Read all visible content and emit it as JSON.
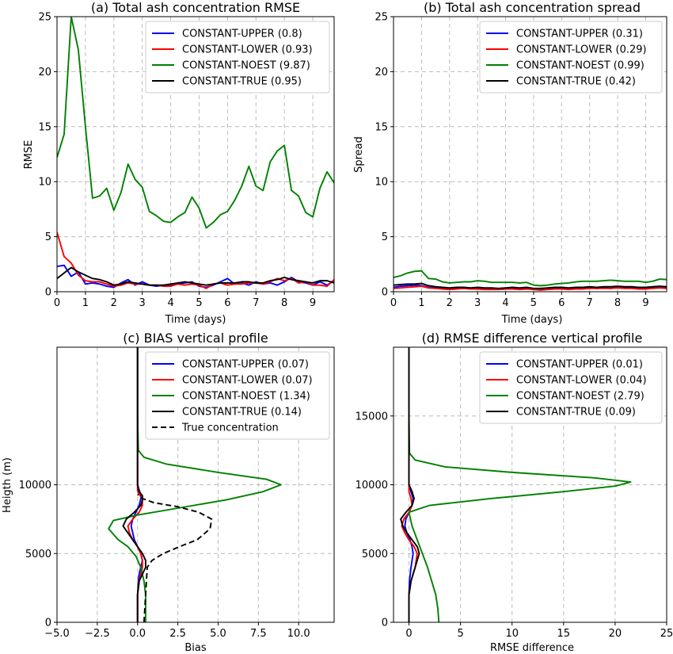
{
  "chart_data": [
    {
      "type": "line",
      "title": "(a) Total ash concentration RMSE",
      "xlabel": "Time (days)",
      "ylabel": "RMSE",
      "xlim": [
        0,
        9.75
      ],
      "ylim": [
        0,
        25
      ],
      "xticks": [
        0,
        1,
        2,
        3,
        4,
        5,
        6,
        7,
        8,
        9
      ],
      "yticks": [
        0,
        5,
        10,
        15,
        20,
        25
      ],
      "xtick_labels": [
        "0",
        "1",
        "2",
        "3",
        "4",
        "5",
        "6",
        "7",
        "8",
        "9"
      ],
      "ytick_labels": [
        "0",
        "5",
        "10",
        "15",
        "20",
        "25"
      ],
      "grid": true,
      "legend": "upper right",
      "x": [
        0,
        0.25,
        0.5,
        0.75,
        1,
        1.25,
        1.5,
        1.75,
        2,
        2.25,
        2.5,
        2.75,
        3,
        3.25,
        3.5,
        3.75,
        4,
        4.25,
        4.5,
        4.75,
        5,
        5.25,
        5.5,
        5.75,
        6,
        6.25,
        6.5,
        6.75,
        7,
        7.25,
        7.5,
        7.75,
        8,
        8.25,
        8.5,
        8.75,
        9,
        9.25,
        9.5,
        9.75
      ],
      "series": [
        {
          "name": "CONSTANT-UPPER (0.8)",
          "color": "#0000ff",
          "values": [
            2.3,
            2.4,
            1.4,
            1.8,
            0.7,
            0.8,
            0.7,
            0.5,
            0.4,
            0.8,
            1.1,
            0.6,
            0.9,
            0.6,
            0.5,
            0.6,
            0.6,
            0.7,
            0.8,
            0.9,
            0.5,
            0.4,
            0.6,
            0.9,
            1.2,
            0.7,
            0.8,
            0.6,
            0.9,
            0.7,
            0.8,
            0.6,
            0.9,
            1.3,
            0.9,
            0.8,
            0.6,
            0.9,
            0.6,
            1.0
          ]
        },
        {
          "name": "CONSTANT-LOWER (0.93)",
          "color": "#ff0000",
          "values": [
            5.4,
            3.2,
            2.6,
            1.5,
            1.0,
            0.9,
            0.9,
            0.7,
            0.5,
            0.6,
            0.8,
            0.7,
            0.7,
            0.6,
            0.6,
            0.5,
            0.5,
            0.7,
            0.6,
            0.7,
            0.6,
            0.3,
            0.7,
            0.8,
            0.6,
            0.7,
            0.7,
            0.8,
            0.8,
            0.7,
            0.9,
            1.2,
            1.0,
            1.2,
            0.8,
            0.9,
            0.6,
            0.6,
            0.5,
            1.1
          ]
        },
        {
          "name": "CONSTANT-NOEST (9.87)",
          "color": "#008000",
          "values": [
            12.2,
            14.3,
            25.0,
            22.0,
            15.0,
            8.5,
            8.7,
            9.4,
            7.4,
            9.0,
            11.6,
            10.2,
            9.5,
            7.3,
            6.9,
            6.4,
            6.3,
            6.8,
            7.2,
            8.6,
            7.6,
            5.8,
            6.3,
            7.0,
            7.3,
            8.3,
            9.6,
            11.4,
            9.6,
            9.2,
            11.8,
            12.8,
            13.3,
            9.2,
            8.7,
            7.2,
            6.8,
            9.4,
            10.9,
            9.9
          ]
        },
        {
          "name": "CONSTANT-TRUE (0.95)",
          "color": "#000000",
          "values": [
            1.2,
            1.7,
            2.2,
            1.8,
            1.5,
            1.2,
            1.1,
            0.9,
            0.6,
            0.7,
            0.9,
            0.8,
            0.7,
            0.6,
            0.6,
            0.6,
            0.7,
            0.8,
            0.9,
            0.8,
            0.7,
            0.6,
            0.7,
            0.8,
            0.8,
            0.8,
            0.9,
            0.9,
            0.8,
            0.8,
            1.0,
            1.1,
            1.3,
            1.1,
            1.0,
            0.9,
            0.8,
            1.0,
            1.0,
            0.8
          ]
        }
      ]
    },
    {
      "type": "line",
      "title": "(b) Total ash concentration spread",
      "xlabel": "Time (days)",
      "ylabel": "Spread",
      "xlim": [
        0,
        9.75
      ],
      "ylim": [
        0,
        25
      ],
      "xticks": [
        0,
        1,
        2,
        3,
        4,
        5,
        6,
        7,
        8,
        9
      ],
      "yticks": [
        0,
        5,
        10,
        15,
        20,
        25
      ],
      "xtick_labels": [
        "0",
        "1",
        "2",
        "3",
        "4",
        "5",
        "6",
        "7",
        "8",
        "9"
      ],
      "ytick_labels": [
        "0",
        "5",
        "10",
        "15",
        "20",
        "25"
      ],
      "grid": true,
      "legend": "upper right",
      "x": [
        0,
        0.25,
        0.5,
        0.75,
        1,
        1.25,
        1.5,
        1.75,
        2,
        2.25,
        2.5,
        2.75,
        3,
        3.25,
        3.5,
        3.75,
        4,
        4.25,
        4.5,
        4.75,
        5,
        5.25,
        5.5,
        5.75,
        6,
        6.25,
        6.5,
        6.75,
        7,
        7.25,
        7.5,
        7.75,
        8,
        8.25,
        8.5,
        8.75,
        9,
        9.25,
        9.5,
        9.75
      ],
      "series": [
        {
          "name": "CONSTANT-UPPER (0.31)",
          "color": "#0000ff",
          "values": [
            0.4,
            0.5,
            0.55,
            0.6,
            0.55,
            0.4,
            0.35,
            0.3,
            0.25,
            0.3,
            0.3,
            0.25,
            0.3,
            0.25,
            0.25,
            0.2,
            0.25,
            0.3,
            0.25,
            0.3,
            0.2,
            0.2,
            0.25,
            0.3,
            0.3,
            0.25,
            0.3,
            0.3,
            0.35,
            0.3,
            0.35,
            0.3,
            0.4,
            0.35,
            0.35,
            0.3,
            0.3,
            0.35,
            0.4,
            0.35
          ]
        },
        {
          "name": "CONSTANT-LOWER (0.29)",
          "color": "#ff0000",
          "values": [
            0.3,
            0.35,
            0.4,
            0.45,
            0.5,
            0.35,
            0.3,
            0.25,
            0.2,
            0.25,
            0.3,
            0.25,
            0.25,
            0.2,
            0.2,
            0.2,
            0.25,
            0.25,
            0.2,
            0.25,
            0.2,
            0.15,
            0.2,
            0.25,
            0.25,
            0.2,
            0.25,
            0.25,
            0.3,
            0.3,
            0.3,
            0.3,
            0.35,
            0.3,
            0.3,
            0.25,
            0.25,
            0.3,
            0.35,
            0.3
          ]
        },
        {
          "name": "CONSTANT-NOEST (0.99)",
          "color": "#008000",
          "values": [
            1.3,
            1.45,
            1.7,
            1.85,
            1.9,
            1.2,
            1.15,
            0.9,
            0.8,
            0.85,
            0.9,
            0.9,
            1.0,
            0.95,
            0.85,
            0.85,
            0.85,
            0.85,
            0.8,
            0.85,
            0.6,
            0.55,
            0.6,
            0.7,
            0.75,
            0.8,
            0.9,
            0.95,
            0.95,
            0.95,
            1.0,
            1.05,
            1.0,
            0.95,
            0.95,
            0.95,
            0.85,
            0.95,
            1.15,
            1.1
          ]
        },
        {
          "name": "CONSTANT-TRUE (0.42)",
          "color": "#000000",
          "values": [
            0.6,
            0.65,
            0.7,
            0.7,
            0.75,
            0.55,
            0.45,
            0.4,
            0.35,
            0.4,
            0.4,
            0.35,
            0.4,
            0.35,
            0.35,
            0.3,
            0.35,
            0.4,
            0.35,
            0.4,
            0.3,
            0.3,
            0.35,
            0.4,
            0.4,
            0.35,
            0.4,
            0.4,
            0.45,
            0.4,
            0.45,
            0.45,
            0.5,
            0.45,
            0.45,
            0.4,
            0.4,
            0.45,
            0.5,
            0.45
          ]
        }
      ]
    },
    {
      "type": "line",
      "title": "(c) BIAS vertical profile",
      "xlabel": "Bias",
      "ylabel": "Heigth (m)",
      "xlim": [
        -5,
        12.2
      ],
      "ylim": [
        0,
        20000
      ],
      "xticks": [
        -5,
        -2.5,
        0,
        2.5,
        5,
        7.5,
        10
      ],
      "yticks": [
        0,
        5000,
        10000
      ],
      "xtick_labels": [
        "−5.0",
        "−2.5",
        "0.0",
        "2.5",
        "5.0",
        "7.5",
        "10.0"
      ],
      "ytick_labels": [
        "0",
        "5000",
        "10000"
      ],
      "grid": true,
      "legend": "upper right",
      "series": [
        {
          "name": "CONSTANT-UPPER (0.07)",
          "color": "#0000ff",
          "dash": false,
          "x": [
            0.0,
            0.0,
            0.0,
            0.05,
            0.1,
            0.2,
            0.3,
            0.2,
            0.0,
            -0.2,
            -0.3,
            -0.4,
            -0.3,
            -0.1,
            0.1,
            0.2,
            0.2,
            0.1,
            0.0,
            0.0,
            0.0,
            0.0
          ],
          "y": [
            0,
            1000,
            2000,
            3000,
            3500,
            4000,
            4500,
            5000,
            5500,
            6000,
            6500,
            7000,
            7500,
            8000,
            8500,
            9000,
            9300,
            9600,
            10000,
            12000,
            16000,
            20000
          ]
        },
        {
          "name": "CONSTANT-LOWER (0.07)",
          "color": "#ff0000",
          "dash": false,
          "x": [
            0.0,
            0.0,
            0.0,
            0.1,
            0.2,
            0.3,
            0.3,
            0.2,
            0.0,
            -0.3,
            -0.5,
            -0.6,
            -0.3,
            0.1,
            0.3,
            0.3,
            0.1,
            0.0,
            0.0,
            0.0,
            0.0,
            0.0
          ],
          "y": [
            0,
            1000,
            2000,
            3000,
            3500,
            4000,
            4500,
            5000,
            5500,
            6000,
            6500,
            7000,
            7500,
            8000,
            8500,
            9000,
            9300,
            9600,
            10000,
            12000,
            16000,
            20000
          ]
        },
        {
          "name": "CONSTANT-NOEST (1.34)",
          "color": "#008000",
          "dash": false,
          "x": [
            0.5,
            0.5,
            0.5,
            0.4,
            0.2,
            -0.1,
            -0.6,
            -1.2,
            -1.8,
            -1.5,
            0.0,
            2.5,
            5.5,
            7.8,
            8.9,
            8.0,
            5.0,
            1.8,
            0.4,
            0.05,
            0.0,
            0.0
          ],
          "y": [
            0,
            1000,
            2000,
            3000,
            4000,
            4800,
            5500,
            6000,
            6800,
            7400,
            7800,
            8300,
            8900,
            9500,
            10000,
            10400,
            10900,
            11500,
            12000,
            12500,
            15000,
            20000
          ]
        },
        {
          "name": "CONSTANT-TRUE (0.14)",
          "color": "#000000",
          "dash": false,
          "x": [
            0.0,
            0.0,
            0.0,
            0.1,
            0.3,
            0.5,
            0.5,
            0.3,
            0.0,
            -0.3,
            -0.6,
            -0.9,
            -0.7,
            -0.2,
            0.2,
            0.3,
            0.3,
            0.1,
            0.0,
            0.0,
            0.0,
            0.0
          ],
          "y": [
            0,
            1000,
            2000,
            3000,
            3500,
            4000,
            4500,
            5000,
            5500,
            6000,
            6500,
            7000,
            7500,
            8000,
            8500,
            8900,
            9200,
            9500,
            10000,
            12000,
            16000,
            20000
          ]
        },
        {
          "name": "True concentration",
          "color": "#000000",
          "dash": true,
          "x": [
            0.4,
            0.45,
            0.5,
            0.55,
            0.6,
            0.9,
            1.6,
            2.6,
            3.7,
            4.5,
            4.6,
            3.8,
            2.5,
            1.0,
            0.3,
            0.0
          ],
          "y": [
            0,
            1000,
            2000,
            3000,
            4000,
            4500,
            5000,
            5500,
            6000,
            6800,
            7500,
            8000,
            8400,
            8700,
            9000,
            9300
          ]
        }
      ]
    },
    {
      "type": "line",
      "title": "(d) RMSE difference vertical profile",
      "xlabel": "RMSE difference",
      "ylabel": "",
      "xlim": [
        -1.5,
        25
      ],
      "ylim": [
        0,
        20000
      ],
      "xticks": [
        0,
        5,
        10,
        15,
        20,
        25
      ],
      "yticks": [
        0,
        5000,
        10000,
        15000
      ],
      "xtick_labels": [
        "0",
        "5",
        "10",
        "15",
        "20",
        "25"
      ],
      "ytick_labels": [
        "0",
        "5000",
        "10000",
        "15000"
      ],
      "grid": true,
      "legend": "upper right",
      "series": [
        {
          "name": "CONSTANT-UPPER (0.01)",
          "color": "#0000ff",
          "dash": false,
          "x": [
            0.0,
            0.0,
            0.05,
            0.2,
            0.4,
            0.3,
            0.1,
            -0.2,
            -0.4,
            -0.3,
            0.0,
            0.3,
            0.4,
            0.2,
            0.0,
            0.0,
            0.0
          ],
          "y": [
            0,
            2000,
            3000,
            4000,
            5000,
            5500,
            6000,
            6500,
            7000,
            7500,
            8000,
            8500,
            9000,
            9500,
            10000,
            14000,
            20000
          ]
        },
        {
          "name": "CONSTANT-LOWER (0.04)",
          "color": "#ff0000",
          "dash": false,
          "x": [
            0.0,
            0.0,
            0.2,
            0.6,
            0.8,
            0.5,
            0.0,
            -0.4,
            -0.7,
            -0.5,
            0.0,
            0.3,
            0.2,
            0.0,
            0.0,
            0.0
          ],
          "y": [
            0,
            2000,
            3000,
            4000,
            5000,
            5500,
            6000,
            6500,
            7000,
            7500,
            8000,
            8500,
            9000,
            9500,
            14000,
            20000
          ]
        },
        {
          "name": "CONSTANT-NOEST (2.79)",
          "color": "#008000",
          "dash": false,
          "x": [
            2.9,
            2.8,
            2.6,
            2.2,
            1.8,
            1.3,
            0.8,
            0.3,
            0.0,
            2.0,
            8.0,
            15.0,
            20.0,
            21.5,
            18.0,
            10.0,
            3.5,
            0.6,
            0.05,
            0.0,
            0.0
          ],
          "y": [
            0,
            1000,
            2000,
            3000,
            4000,
            5000,
            6000,
            7000,
            8000,
            8500,
            9000,
            9500,
            9900,
            10200,
            10500,
            10900,
            11300,
            11800,
            12300,
            15000,
            20000
          ]
        },
        {
          "name": "CONSTANT-TRUE (0.09)",
          "color": "#000000",
          "dash": false,
          "x": [
            0.0,
            0.0,
            0.2,
            0.6,
            1.0,
            0.8,
            0.3,
            -0.2,
            -0.6,
            -0.8,
            -0.3,
            0.3,
            0.5,
            0.3,
            0.0,
            0.0,
            0.0
          ],
          "y": [
            0,
            2000,
            3000,
            4000,
            5000,
            5500,
            6000,
            6500,
            7000,
            7500,
            8000,
            8500,
            9000,
            9500,
            10000,
            14000,
            20000
          ]
        }
      ]
    }
  ]
}
